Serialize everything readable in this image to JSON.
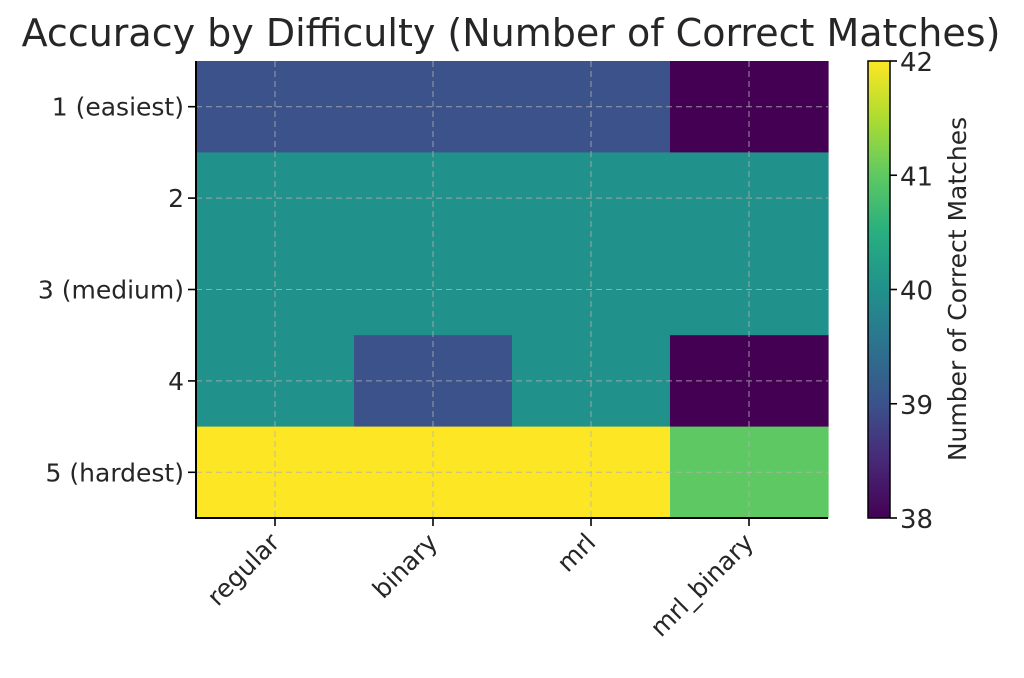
{
  "chart_data": {
    "type": "heatmap",
    "title": "Accuracy by Difficulty (Number of Correct Matches)",
    "x_categories": [
      "regular",
      "binary",
      "mrl",
      "mrl_binary"
    ],
    "y_categories": [
      "1 (easiest)",
      "2",
      "3 (medium)",
      "4",
      "5 (hardest)"
    ],
    "values": [
      [
        39,
        39,
        39,
        38
      ],
      [
        40,
        40,
        40,
        40
      ],
      [
        40,
        40,
        40,
        40
      ],
      [
        40,
        39,
        40,
        38
      ],
      [
        42,
        42,
        42,
        41
      ]
    ],
    "colorbar": {
      "label": "Number of Correct Matches",
      "min": 38,
      "max": 42,
      "ticks": [
        38,
        39,
        40,
        41,
        42
      ]
    },
    "colormap": "viridis",
    "grid": true
  }
}
